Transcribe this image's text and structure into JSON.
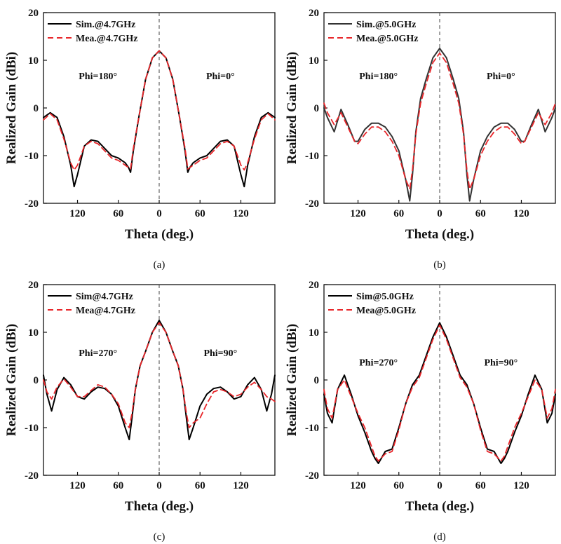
{
  "chart_data": [
    {
      "id": "a",
      "type": "line",
      "caption": "(a)",
      "xlabel": "Theta (deg.)",
      "ylabel": "Realized Gain (dBi)",
      "xlim": [
        -170,
        170
      ],
      "ylim": [
        -20,
        20
      ],
      "xticks": [
        -120,
        -60,
        0,
        60,
        120
      ],
      "xtick_labels": [
        "120",
        "60",
        "0",
        "60",
        "120"
      ],
      "yticks": [
        -20,
        -10,
        0,
        10,
        20
      ],
      "ytick_labels": [
        "-20",
        "-10",
        "0",
        "10",
        "20"
      ],
      "annotations": [
        {
          "text": "Phi=180°",
          "x": -90,
          "y": 6
        },
        {
          "text": "Phi=0°",
          "x": 90,
          "y": 6
        }
      ],
      "legend_position": "top-left",
      "series": [
        {
          "name": "Sim.@4.7GHz",
          "color": "#000000",
          "style": "solid",
          "x": [
            -170,
            -160,
            -150,
            -140,
            -130,
            -125,
            -120,
            -110,
            -100,
            -90,
            -80,
            -70,
            -60,
            -55,
            -50,
            -45,
            -42,
            -38,
            -30,
            -20,
            -10,
            0,
            10,
            20,
            30,
            38,
            42,
            45,
            50,
            55,
            60,
            70,
            80,
            90,
            100,
            110,
            120,
            125,
            130,
            140,
            150,
            160,
            170
          ],
          "y": [
            -2,
            -1,
            -2,
            -6,
            -12,
            -16.5,
            -14,
            -8,
            -6.7,
            -7,
            -8.5,
            -10,
            -10.5,
            -11,
            -11.5,
            -12.5,
            -13.5,
            -9,
            -2,
            6,
            10.5,
            12,
            10.5,
            6,
            -2,
            -9,
            -13.5,
            -12.5,
            -11.5,
            -11,
            -10.5,
            -10,
            -8.5,
            -7,
            -6.7,
            -8,
            -14,
            -16.5,
            -12,
            -6,
            -2,
            -1,
            -2
          ]
        },
        {
          "name": "Mea.@4.7GHz",
          "color": "#e8262a",
          "style": "dashed",
          "x": [
            -170,
            -160,
            -150,
            -140,
            -130,
            -125,
            -120,
            -110,
            -100,
            -90,
            -80,
            -70,
            -60,
            -55,
            -50,
            -45,
            -42,
            -38,
            -30,
            -20,
            -10,
            0,
            10,
            20,
            30,
            38,
            42,
            45,
            50,
            55,
            60,
            70,
            80,
            90,
            100,
            110,
            120,
            125,
            130,
            140,
            150,
            160,
            170
          ],
          "y": [
            -2.5,
            -1.2,
            -2.5,
            -6.5,
            -11.5,
            -13,
            -12,
            -8,
            -7,
            -7.5,
            -9,
            -10.5,
            -11,
            -11.5,
            -12,
            -12.5,
            -12.8,
            -8.5,
            -2,
            6,
            10.5,
            12,
            10.5,
            6,
            -2,
            -8.5,
            -12.8,
            -12.5,
            -12,
            -11.5,
            -11,
            -10.5,
            -9,
            -7.5,
            -7,
            -8,
            -12,
            -13,
            -11.5,
            -6.5,
            -2.5,
            -1.2,
            -2.5
          ]
        }
      ]
    },
    {
      "id": "b",
      "type": "line",
      "caption": "(b)",
      "xlabel": "Theta (deg.)",
      "ylabel": "Realized Gain (dBi)",
      "xlim": [
        -170,
        170
      ],
      "ylim": [
        -20,
        20
      ],
      "xticks": [
        -120,
        -60,
        0,
        60,
        120
      ],
      "xtick_labels": [
        "120",
        "60",
        "0",
        "60",
        "120"
      ],
      "yticks": [
        -20,
        -10,
        0,
        10,
        20
      ],
      "ytick_labels": [
        "-20",
        "-10",
        "0",
        "10",
        "20"
      ],
      "annotations": [
        {
          "text": "Phi=180°",
          "x": -90,
          "y": 6
        },
        {
          "text": "Phi=0°",
          "x": 90,
          "y": 6
        }
      ],
      "legend_position": "top-left",
      "series": [
        {
          "name": "Sim.@5.0GHz",
          "color": "#333333",
          "style": "solid",
          "x": [
            -170,
            -165,
            -155,
            -145,
            -135,
            -125,
            -120,
            -110,
            -100,
            -90,
            -80,
            -70,
            -60,
            -50,
            -44,
            -40,
            -35,
            -28,
            -20,
            -10,
            0,
            10,
            20,
            28,
            35,
            40,
            44,
            50,
            60,
            70,
            80,
            90,
            100,
            110,
            120,
            125,
            135,
            145,
            155,
            165,
            170
          ],
          "y": [
            0,
            -2,
            -5,
            -0.3,
            -3.5,
            -7,
            -7,
            -4.5,
            -3.2,
            -3.2,
            -4,
            -6,
            -9,
            -15,
            -19.5,
            -14,
            -5,
            2,
            6,
            10.5,
            12.5,
            10.5,
            6,
            2,
            -5,
            -14,
            -19.5,
            -15,
            -9,
            -6,
            -4,
            -3.2,
            -3.2,
            -4.5,
            -7,
            -7,
            -3.5,
            -0.3,
            -5,
            -2,
            0
          ]
        },
        {
          "name": "Mea.@5.0GHz",
          "color": "#e8262a",
          "style": "dashed",
          "x": [
            -170,
            -165,
            -155,
            -145,
            -135,
            -125,
            -120,
            -110,
            -100,
            -90,
            -80,
            -70,
            -60,
            -50,
            -44,
            -40,
            -35,
            -28,
            -20,
            -10,
            0,
            10,
            20,
            28,
            35,
            40,
            44,
            50,
            60,
            70,
            80,
            90,
            100,
            110,
            120,
            125,
            135,
            145,
            155,
            165,
            170
          ],
          "y": [
            1,
            -1,
            -3.5,
            -1,
            -4,
            -7,
            -7.5,
            -5.5,
            -4,
            -4,
            -5,
            -7,
            -10,
            -15,
            -17,
            -13,
            -5.5,
            1,
            5,
            9.5,
            11.5,
            9.5,
            5,
            1,
            -5.5,
            -13,
            -17,
            -15,
            -10,
            -7,
            -5,
            -4,
            -4,
            -5.5,
            -7.5,
            -7,
            -4,
            -1,
            -3.5,
            -1,
            1
          ]
        }
      ]
    },
    {
      "id": "c",
      "type": "line",
      "caption": "(c)",
      "xlabel": "Theta (deg.)",
      "ylabel": "Realized Gain (dBi)",
      "xlim": [
        -170,
        170
      ],
      "ylim": [
        -20,
        20
      ],
      "xticks": [
        -120,
        -60,
        0,
        60,
        120
      ],
      "xtick_labels": [
        "120",
        "60",
        "0",
        "60",
        "120"
      ],
      "yticks": [
        -20,
        -10,
        0,
        10,
        20
      ],
      "ytick_labels": [
        "-20",
        "-10",
        "0",
        "10",
        "20"
      ],
      "annotations": [
        {
          "text": "Phi=270°",
          "x": -90,
          "y": 5
        },
        {
          "text": "Phi=90°",
          "x": 90,
          "y": 5
        }
      ],
      "legend_position": "top-left",
      "series": [
        {
          "name": "Sim@4.7GHz",
          "color": "#000000",
          "style": "solid",
          "x": [
            -170,
            -165,
            -158,
            -150,
            -140,
            -130,
            -120,
            -110,
            -100,
            -90,
            -80,
            -70,
            -60,
            -50,
            -44,
            -40,
            -35,
            -28,
            -20,
            -10,
            0,
            10,
            20,
            28,
            35,
            40,
            44,
            50,
            60,
            70,
            80,
            90,
            100,
            110,
            120,
            130,
            140,
            150,
            158,
            165,
            170
          ],
          "y": [
            1,
            -3,
            -6.5,
            -2,
            0.5,
            -1,
            -3.5,
            -4,
            -2.5,
            -1.5,
            -1.8,
            -3,
            -5.5,
            -10,
            -12.5,
            -8,
            -2,
            3,
            6,
            10,
            12.5,
            10,
            6,
            3,
            -2,
            -8,
            -12.5,
            -10,
            -5.5,
            -3,
            -1.8,
            -1.5,
            -2.5,
            -4,
            -3.5,
            -1,
            0.5,
            -2,
            -6.5,
            -3,
            1
          ]
        },
        {
          "name": "Mea@4.7GHz",
          "color": "#e8262a",
          "style": "dashed",
          "x": [
            -170,
            -165,
            -158,
            -150,
            -140,
            -130,
            -120,
            -110,
            -100,
            -90,
            -80,
            -70,
            -60,
            -50,
            -44,
            -40,
            -35,
            -28,
            -20,
            -10,
            0,
            10,
            20,
            28,
            35,
            40,
            44,
            50,
            60,
            70,
            80,
            90,
            100,
            110,
            120,
            130,
            140,
            150,
            158,
            165,
            170
          ],
          "y": [
            0,
            -2.5,
            -4,
            -1.5,
            0.2,
            -1.5,
            -3.5,
            -3.5,
            -2.2,
            -1,
            -1.5,
            -3,
            -5,
            -9,
            -10,
            -7,
            -2,
            3,
            6,
            10,
            12,
            10,
            6,
            3,
            -2,
            -7,
            -10,
            -9,
            -8,
            -5,
            -2.5,
            -2,
            -2.5,
            -3.5,
            -3,
            -1.5,
            -0.5,
            -2,
            -3.5,
            -4,
            -4.5
          ]
        }
      ]
    },
    {
      "id": "d",
      "type": "line",
      "caption": "(d)",
      "xlabel": "Theta (deg.)",
      "ylabel": "Realized Gain (dBi)",
      "xlim": [
        -170,
        170
      ],
      "ylim": [
        -20,
        20
      ],
      "xticks": [
        -120,
        -60,
        0,
        60,
        120
      ],
      "xtick_labels": [
        "120",
        "60",
        "0",
        "60",
        "120"
      ],
      "yticks": [
        -20,
        -10,
        0,
        10,
        20
      ],
      "ytick_labels": [
        "-20",
        "-10",
        "0",
        "10",
        "20"
      ],
      "annotations": [
        {
          "text": "Phi=270°",
          "x": -90,
          "y": 3
        },
        {
          "text": "Phi=90°",
          "x": 90,
          "y": 3
        }
      ],
      "legend_position": "top-left",
      "series": [
        {
          "name": "Sim@5.0GHz",
          "color": "#000000",
          "style": "solid",
          "x": [
            -170,
            -165,
            -158,
            -150,
            -140,
            -130,
            -120,
            -110,
            -100,
            -95,
            -90,
            -80,
            -70,
            -60,
            -50,
            -40,
            -30,
            -20,
            -10,
            0,
            10,
            20,
            30,
            40,
            50,
            60,
            70,
            80,
            90,
            95,
            100,
            110,
            120,
            130,
            140,
            150,
            158,
            165,
            170
          ],
          "y": [
            -3,
            -7,
            -9,
            -2,
            1,
            -3,
            -7.5,
            -11,
            -15,
            -16.5,
            -17.5,
            -15,
            -14.5,
            -10,
            -5,
            -1,
            1,
            5,
            9,
            12,
            9,
            5,
            1,
            -1,
            -5,
            -10,
            -14.5,
            -15,
            -17.5,
            -16.5,
            -15,
            -11,
            -7.5,
            -3,
            1,
            -2,
            -9,
            -7,
            -3
          ]
        },
        {
          "name": "Mea@5.0GHz",
          "color": "#e8262a",
          "style": "dashed",
          "x": [
            -170,
            -165,
            -158,
            -150,
            -140,
            -130,
            -120,
            -110,
            -100,
            -95,
            -90,
            -80,
            -70,
            -60,
            -50,
            -40,
            -30,
            -20,
            -10,
            0,
            10,
            20,
            30,
            40,
            50,
            60,
            70,
            80,
            90,
            95,
            100,
            110,
            120,
            130,
            140,
            150,
            158,
            165,
            170
          ],
          "y": [
            -2,
            -6,
            -8,
            -2,
            0,
            -3.5,
            -7,
            -10,
            -14,
            -16,
            -17,
            -15.5,
            -15,
            -10.5,
            -5,
            -1.5,
            0.5,
            4.5,
            8.5,
            11.5,
            8.5,
            4.5,
            0.5,
            -1.5,
            -5,
            -10.5,
            -15,
            -15.5,
            -17,
            -16,
            -14,
            -10,
            -7,
            -3.5,
            0,
            -2,
            -8,
            -6,
            -2
          ]
        }
      ]
    }
  ]
}
